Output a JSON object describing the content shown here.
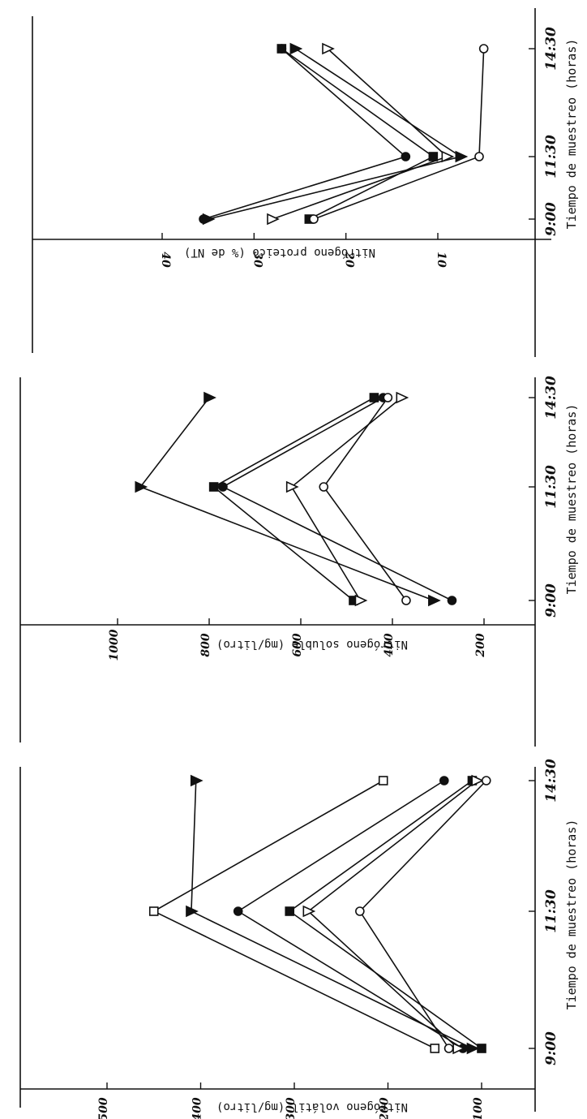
{
  "colors": {
    "ink": "#111111",
    "background": "#ffffff"
  },
  "chart_data": [
    {
      "type": "line",
      "panel": "top",
      "xlabel": "Tiempo de muestreo (horas)",
      "ylabel": "Nitrógeno proteico (% de NT)",
      "categories": [
        "9:00",
        "11:30",
        "14:30"
      ],
      "y_ticks": [
        {
          "label": "40",
          "value": 40
        },
        {
          "label": "30",
          "value": 30
        },
        {
          "label": "20",
          "value": 20
        },
        {
          "label": "10",
          "value": 10
        }
      ],
      "ylim": [
        3,
        48
      ],
      "series": [
        {
          "marker": "filled-circle",
          "values": [
            35.5,
            13.5,
            27
          ]
        },
        {
          "marker": "filled-triangle",
          "values": [
            35,
            7.5,
            25.5
          ]
        },
        {
          "marker": "open-triangle",
          "values": [
            28,
            9,
            22
          ]
        },
        {
          "marker": "filled-square",
          "values": [
            24,
            10.5,
            27
          ]
        },
        {
          "marker": "open-circle",
          "values": [
            23.5,
            5.5,
            5
          ]
        }
      ]
    },
    {
      "type": "line",
      "panel": "middle",
      "xlabel": "Tiempo de muestreo (horas)",
      "ylabel": "Nitrógeno soluble (mg/litro)",
      "categories": [
        "9:00",
        "11:30",
        "14:30"
      ],
      "y_ticks": [
        {
          "label": "1000",
          "value": 1000
        },
        {
          "label": "800",
          "value": 800
        },
        {
          "label": "600",
          "value": 600
        },
        {
          "label": "400",
          "value": 400
        },
        {
          "label": "200",
          "value": 200
        }
      ],
      "ylim": [
        130,
        1100
      ],
      "series": [
        {
          "marker": "filled-triangle",
          "values": [
            310,
            950,
            800
          ]
        },
        {
          "marker": "filled-square",
          "values": [
            485,
            790,
            440
          ]
        },
        {
          "marker": "filled-circle",
          "values": [
            270,
            770,
            420
          ]
        },
        {
          "marker": "open-triangle",
          "values": [
            470,
            620,
            380
          ]
        },
        {
          "marker": "open-circle",
          "values": [
            370,
            550,
            410
          ]
        }
      ]
    },
    {
      "type": "line",
      "panel": "bottom",
      "xlabel": "Tiempo de muestreo (horas)",
      "ylabel": "Nitrógeno volátil (mg/litro)",
      "categories": [
        "9:00",
        "11:30",
        "14:30"
      ],
      "y_ticks": [
        {
          "label": "500",
          "value": 500
        },
        {
          "label": "400",
          "value": 400
        },
        {
          "label": "300",
          "value": 300
        },
        {
          "label": "200",
          "value": 200
        },
        {
          "label": "100",
          "value": 100
        }
      ],
      "ylim": [
        70,
        560
      ],
      "series": [
        {
          "marker": "open-square",
          "values": [
            150,
            450,
            205
          ]
        },
        {
          "marker": "filled-triangle",
          "values": [
            110,
            410,
            405
          ]
        },
        {
          "marker": "filled-circle",
          "values": [
            120,
            360,
            140
          ]
        },
        {
          "marker": "filled-square",
          "values": [
            100,
            305,
            110
          ]
        },
        {
          "marker": "open-triangle",
          "values": [
            125,
            285,
            105
          ]
        },
        {
          "marker": "open-circle",
          "values": [
            135,
            230,
            95
          ]
        }
      ]
    }
  ]
}
